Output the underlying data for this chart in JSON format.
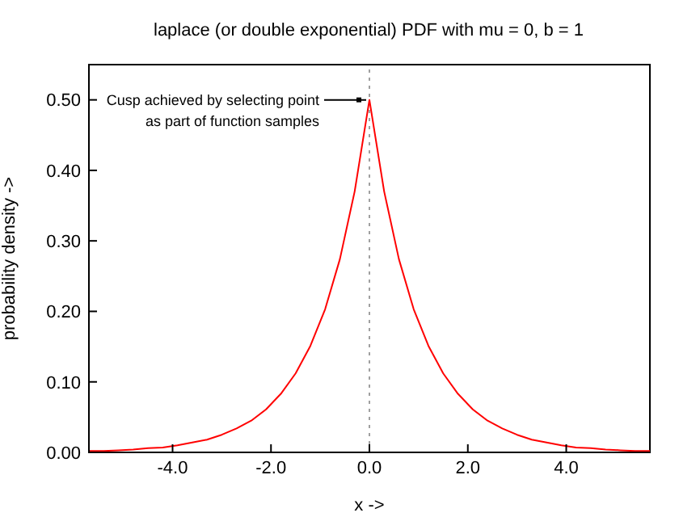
{
  "chart_data": {
    "type": "line",
    "title": "laplace (or double exponential) PDF  with mu = 0, b = 1",
    "xlabel": "x ->",
    "ylabel": "probability density ->",
    "x": [
      -5.7,
      -5.4,
      -5.1,
      -4.8,
      -4.5,
      -4.2,
      -3.9,
      -3.6,
      -3.3,
      -3.0,
      -2.7,
      -2.4,
      -2.1,
      -1.8,
      -1.5,
      -1.2,
      -0.9,
      -0.6,
      -0.3,
      0,
      0.3,
      0.6,
      0.9,
      1.2,
      1.5,
      1.8,
      2.1,
      2.4,
      2.7,
      3.0,
      3.3,
      3.6,
      3.9,
      4.2,
      4.5,
      4.8,
      5.1,
      5.4,
      5.7
    ],
    "series": [
      {
        "color": "#ff0000",
        "values": [
          0.002,
          0.002,
          0.003,
          0.004,
          0.006,
          0.007,
          0.01,
          0.014,
          0.018,
          0.025,
          0.034,
          0.045,
          0.061,
          0.083,
          0.112,
          0.151,
          0.203,
          0.274,
          0.37,
          0.5,
          0.37,
          0.274,
          0.203,
          0.151,
          0.112,
          0.083,
          0.061,
          0.045,
          0.034,
          0.025,
          0.018,
          0.014,
          0.01,
          0.007,
          0.006,
          0.004,
          0.003,
          0.002,
          0.002
        ]
      }
    ],
    "xlim": [
      -5.7,
      5.7
    ],
    "xticks": [
      {
        "value": -4,
        "label": "-4.0"
      },
      {
        "value": -2,
        "label": "-2.0"
      },
      {
        "value": 0,
        "label": "0.0"
      },
      {
        "value": 2,
        "label": "2.0"
      },
      {
        "value": 4,
        "label": "4.0"
      }
    ],
    "ylim": [
      0,
      0.55
    ],
    "yticks": [
      {
        "value": 0,
        "label": "0.00"
      },
      {
        "value": 0.1,
        "label": "0.10"
      },
      {
        "value": 0.2,
        "label": "0.20"
      },
      {
        "value": 0.3,
        "label": "0.30"
      },
      {
        "value": 0.4,
        "label": "0.40"
      },
      {
        "value": 0.5,
        "label": "0.50"
      }
    ],
    "ref_lines": [
      {
        "axis": "x",
        "value": 0,
        "color": "#a0a0a0",
        "line_style": "dotted"
      }
    ],
    "annotations": [
      {
        "text": "Cusp achieved by selecting point\nas part of function samples",
        "x": 0,
        "y": 0.5
      }
    ],
    "grid": false,
    "legend": false,
    "marker": "none",
    "line_style": "solid"
  }
}
